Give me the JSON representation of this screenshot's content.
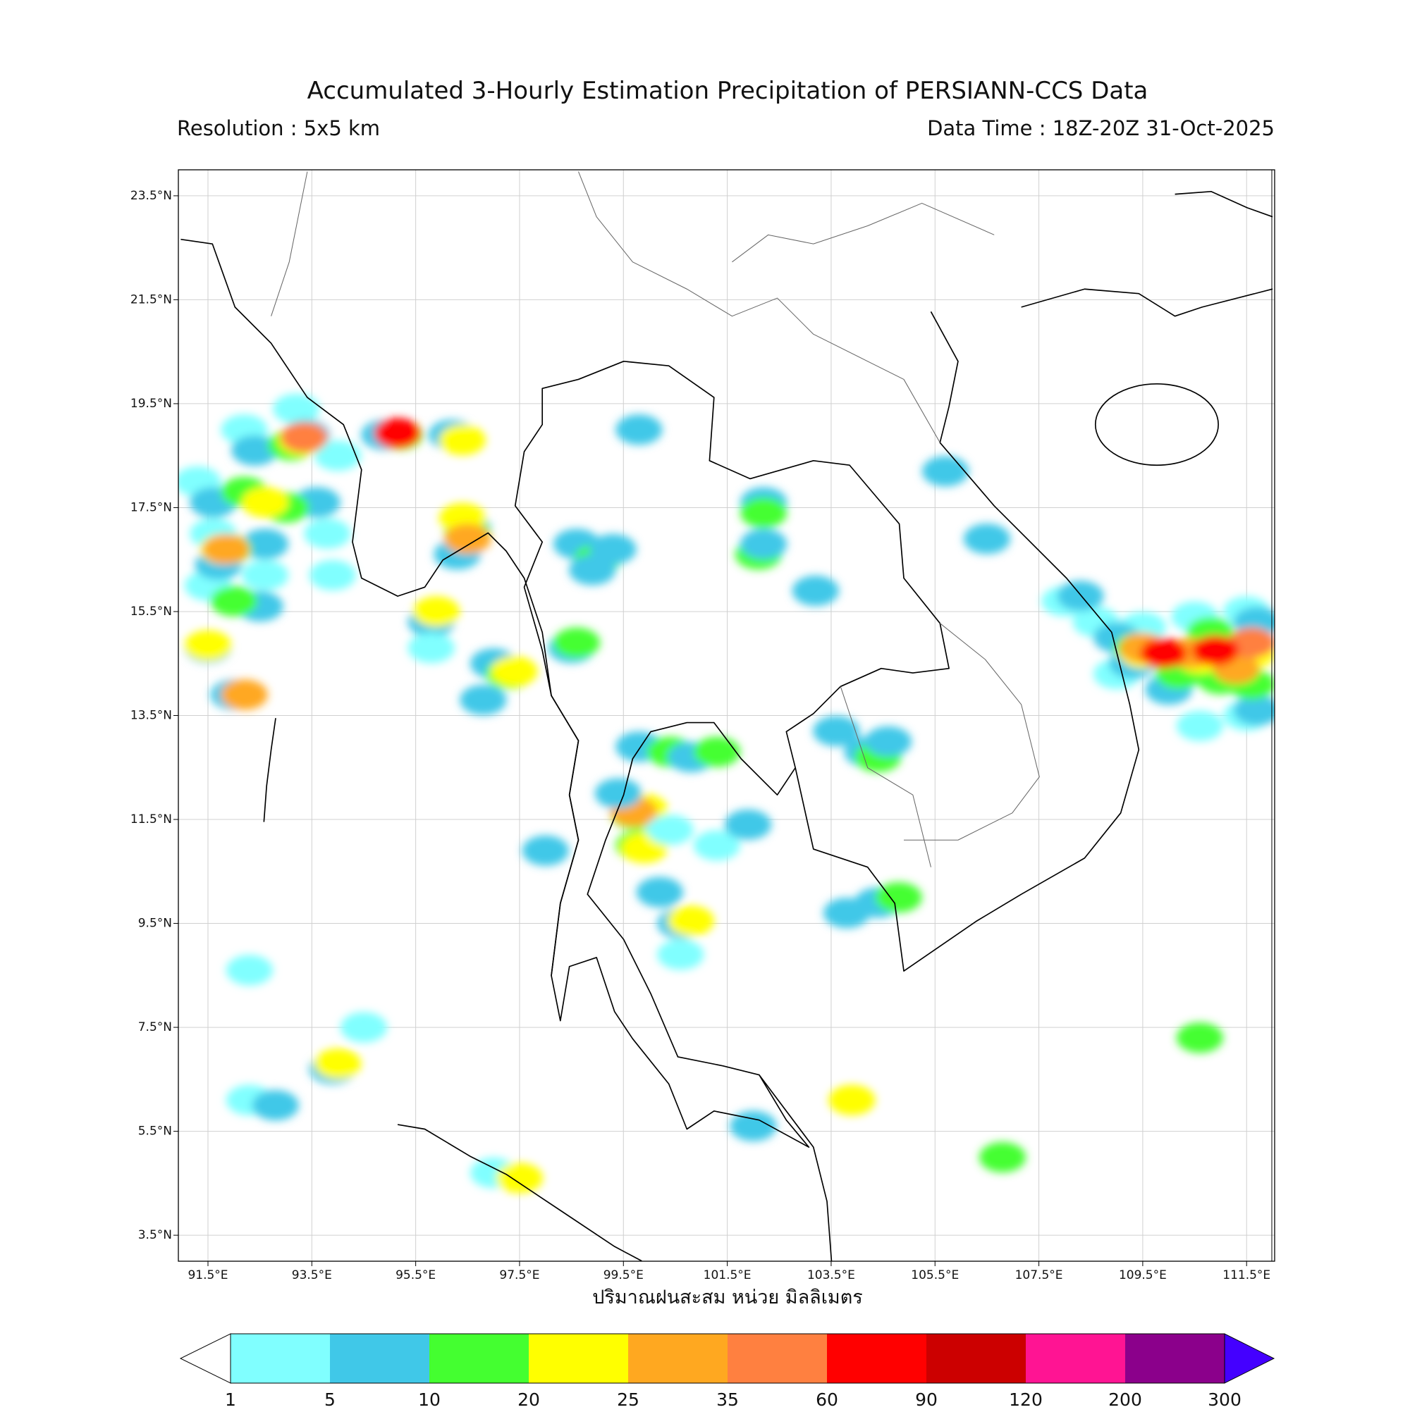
{
  "title": "Accumulated 3-Hourly Estimation Precipitation of PERSIANN-CCS Data",
  "resolution": "Resolution : 5x5 km",
  "data_time": "Data Time : 18Z-20Z 31-Oct-2025",
  "map": {
    "xlim": [
      90.93,
      112.04
    ],
    "ylim": [
      3.0,
      24.0
    ],
    "grid": true,
    "xticks": [
      {
        "value": 91.5,
        "label": "91.5°E"
      },
      {
        "value": 93.5,
        "label": "93.5°E"
      },
      {
        "value": 95.5,
        "label": "95.5°E"
      },
      {
        "value": 97.5,
        "label": "97.5°E"
      },
      {
        "value": 99.5,
        "label": "99.5°E"
      },
      {
        "value": 101.5,
        "label": "101.5°E"
      },
      {
        "value": 103.5,
        "label": "103.5°E"
      },
      {
        "value": 105.5,
        "label": "105.5°E"
      },
      {
        "value": 107.5,
        "label": "107.5°E"
      },
      {
        "value": 109.5,
        "label": "109.5°E"
      },
      {
        "value": 111.5,
        "label": "111.5°E"
      }
    ],
    "yticks": [
      {
        "value": 3.5,
        "label": "3.5°N"
      },
      {
        "value": 5.5,
        "label": "5.5°N"
      },
      {
        "value": 7.5,
        "label": "7.5°N"
      },
      {
        "value": 9.5,
        "label": "9.5°N"
      },
      {
        "value": 11.5,
        "label": "11.5°N"
      },
      {
        "value": 13.5,
        "label": "13.5°N"
      },
      {
        "value": 15.5,
        "label": "15.5°N"
      },
      {
        "value": 17.5,
        "label": "17.5°N"
      },
      {
        "value": 19.5,
        "label": "19.5°N"
      },
      {
        "value": 21.5,
        "label": "21.5°N"
      },
      {
        "value": 23.5,
        "label": "23.5°N"
      }
    ],
    "cells": [
      [
        91.3,
        18.0,
        3
      ],
      [
        91.6,
        17.0,
        3
      ],
      [
        92.2,
        19.0,
        3
      ],
      [
        93.2,
        19.4,
        3
      ],
      [
        94.0,
        18.5,
        3
      ],
      [
        93.8,
        17.0,
        3
      ],
      [
        92.6,
        16.2,
        3
      ],
      [
        91.5,
        16.0,
        3
      ],
      [
        93.9,
        16.2,
        3
      ],
      [
        91.6,
        17.6,
        7
      ],
      [
        92.4,
        18.6,
        7
      ],
      [
        93.4,
        18.9,
        7
      ],
      [
        93.6,
        17.6,
        7
      ],
      [
        92.6,
        16.8,
        7
      ],
      [
        91.7,
        16.4,
        7
      ],
      [
        92.2,
        17.8,
        15
      ],
      [
        93.1,
        18.7,
        15
      ],
      [
        93.0,
        17.5,
        15
      ],
      [
        91.9,
        16.7,
        15
      ],
      [
        92.6,
        17.6,
        22
      ],
      [
        93.3,
        18.8,
        22
      ],
      [
        91.8,
        16.7,
        22
      ],
      [
        93.35,
        18.85,
        40
      ],
      [
        91.85,
        16.7,
        30
      ],
      [
        94.9,
        18.9,
        7
      ],
      [
        95.2,
        18.9,
        15
      ],
      [
        95.15,
        18.93,
        70
      ],
      [
        96.2,
        18.9,
        7
      ],
      [
        96.4,
        18.8,
        22
      ],
      [
        96.5,
        17.1,
        7
      ],
      [
        96.3,
        16.6,
        7
      ],
      [
        96.5,
        17.0,
        15
      ],
      [
        96.4,
        17.3,
        22
      ],
      [
        96.5,
        16.9,
        30
      ],
      [
        95.8,
        15.3,
        7
      ],
      [
        95.9,
        15.5,
        22
      ],
      [
        91.5,
        14.8,
        7
      ],
      [
        91.5,
        14.85,
        22
      ],
      [
        92.0,
        13.9,
        7
      ],
      [
        92.2,
        13.9,
        30
      ],
      [
        92.5,
        15.6,
        7
      ],
      [
        92.0,
        15.7,
        15
      ],
      [
        97.0,
        14.5,
        5
      ],
      [
        97.3,
        14.3,
        15
      ],
      [
        97.4,
        14.35,
        22
      ],
      [
        96.8,
        13.8,
        5
      ],
      [
        95.8,
        14.8,
        3
      ],
      [
        98.6,
        16.8,
        7
      ],
      [
        99.0,
        16.5,
        15
      ],
      [
        98.9,
        16.3,
        7
      ],
      [
        99.3,
        16.7,
        7
      ],
      [
        98.5,
        14.8,
        5
      ],
      [
        98.6,
        14.9,
        12
      ],
      [
        99.8,
        19.0,
        7
      ],
      [
        102.2,
        17.6,
        7
      ],
      [
        102.2,
        17.4,
        15
      ],
      [
        102.1,
        16.6,
        15
      ],
      [
        102.2,
        16.8,
        7
      ],
      [
        103.2,
        15.9,
        7
      ],
      [
        99.8,
        12.9,
        7
      ],
      [
        100.4,
        12.8,
        15
      ],
      [
        100.8,
        12.7,
        7
      ],
      [
        101.3,
        12.8,
        15
      ],
      [
        99.7,
        11.6,
        15
      ],
      [
        99.9,
        11.7,
        22
      ],
      [
        99.7,
        11.65,
        30
      ],
      [
        99.8,
        11.0,
        15
      ],
      [
        99.9,
        10.95,
        22
      ],
      [
        100.4,
        11.3,
        3
      ],
      [
        101.3,
        11.0,
        3
      ],
      [
        101.9,
        11.4,
        5
      ],
      [
        98.0,
        10.9,
        5
      ],
      [
        99.4,
        12.0,
        5
      ],
      [
        100.2,
        10.1,
        5
      ],
      [
        100.6,
        9.5,
        7
      ],
      [
        100.8,
        9.55,
        22
      ],
      [
        100.6,
        8.9,
        3
      ],
      [
        103.6,
        13.2,
        5
      ],
      [
        104.2,
        12.8,
        7
      ],
      [
        104.4,
        12.7,
        15
      ],
      [
        104.6,
        13.0,
        5
      ],
      [
        104.4,
        9.9,
        7
      ],
      [
        104.8,
        10.0,
        15
      ],
      [
        103.8,
        9.7,
        5
      ],
      [
        108.0,
        15.7,
        3
      ],
      [
        108.6,
        15.3,
        3
      ],
      [
        109.0,
        14.3,
        3
      ],
      [
        109.5,
        15.2,
        3
      ],
      [
        110.5,
        15.4,
        3
      ],
      [
        111.5,
        15.5,
        3
      ],
      [
        111.5,
        13.5,
        3
      ],
      [
        110.6,
        13.3,
        3
      ],
      [
        108.3,
        15.8,
        7
      ],
      [
        109.0,
        15.0,
        7
      ],
      [
        109.3,
        14.5,
        7
      ],
      [
        110.0,
        14.0,
        7
      ],
      [
        111.0,
        14.6,
        7
      ],
      [
        111.7,
        15.3,
        7
      ],
      [
        111.7,
        13.6,
        7
      ],
      [
        109.4,
        14.8,
        15
      ],
      [
        110.2,
        14.3,
        15
      ],
      [
        111.0,
        14.2,
        15
      ],
      [
        111.6,
        14.1,
        15
      ],
      [
        110.8,
        15.1,
        15
      ],
      [
        109.5,
        14.7,
        22
      ],
      [
        110.6,
        14.6,
        22
      ],
      [
        111.6,
        14.7,
        22
      ],
      [
        109.5,
        14.8,
        30
      ],
      [
        110.4,
        14.7,
        30
      ],
      [
        111.3,
        14.4,
        30
      ],
      [
        111.6,
        14.9,
        40
      ],
      [
        109.9,
        14.7,
        70
      ],
      [
        110.9,
        14.75,
        70
      ],
      [
        105.7,
        18.2,
        5
      ],
      [
        106.5,
        16.9,
        5
      ],
      [
        93.9,
        6.7,
        7
      ],
      [
        94.0,
        6.8,
        22
      ],
      [
        92.3,
        6.1,
        3
      ],
      [
        92.8,
        6.0,
        7
      ],
      [
        97.0,
        4.7,
        3
      ],
      [
        97.5,
        4.6,
        22
      ],
      [
        102.0,
        5.6,
        5
      ],
      [
        103.9,
        6.1,
        22
      ],
      [
        106.8,
        5.0,
        15
      ],
      [
        92.3,
        8.6,
        3
      ],
      [
        94.5,
        7.5,
        3
      ],
      [
        110.6,
        7.3,
        15
      ]
    ],
    "xlabel": "ปริมาณฝนสะสม หน่วย มิลลิเมตร"
  },
  "colorbar": {
    "levels": [
      1,
      5,
      10,
      20,
      25,
      35,
      60,
      90,
      120,
      200,
      300
    ],
    "colors": [
      "#ffffff",
      "#80ffff",
      "#40c8e8",
      "#44ff30",
      "#ffff00",
      "#ffa820",
      "#ff8040",
      "#ff0000",
      "#cc0000",
      "#ff1493",
      "#8b008b",
      "#4400ff"
    ]
  }
}
